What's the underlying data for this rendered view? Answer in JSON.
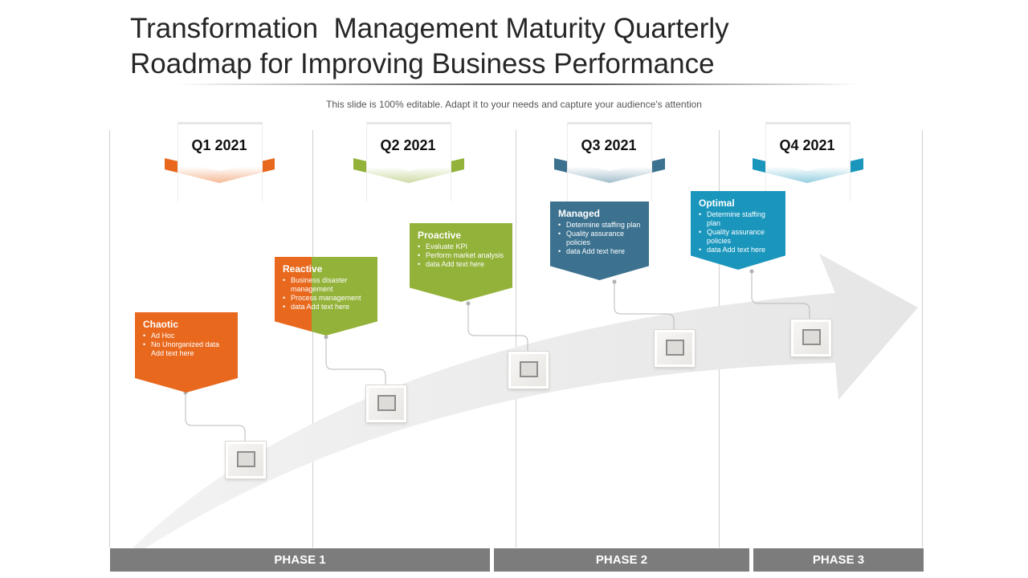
{
  "title": "Transformation  Management Maturity Quarterly\nRoadmap for Improving Business Performance",
  "subtitle": "This slide is 100% editable. Adapt it to your needs and capture your audience's attention",
  "quarters": [
    {
      "label": "Q1 2021",
      "color": "#e8691e"
    },
    {
      "label": "Q2 2021",
      "color": "#93b23a"
    },
    {
      "label": "Q3 2021",
      "color": "#3c7290"
    },
    {
      "label": "Q4 2021",
      "color": "#1a96bd"
    }
  ],
  "stages": [
    {
      "title": "Chaotic",
      "items": [
        "Ad Hoc",
        "No Unorganized  data Add text here"
      ],
      "color": "#e8691e"
    },
    {
      "title": "Reactive",
      "items": [
        "Business disaster management",
        "Process management",
        "data Add text here"
      ],
      "color": "#e8691e",
      "color2": "#93b23a"
    },
    {
      "title": "Proactive",
      "items": [
        "Evaluate KPI",
        "Perform market analysis",
        "data Add text here"
      ],
      "color": "#93b23a"
    },
    {
      "title": "Managed",
      "items": [
        "Determine staffing plan",
        "Quality assurance policies",
        "data Add text here"
      ],
      "color": "#3c7290"
    },
    {
      "title": "Optimal",
      "items": [
        "Determine staffing plan",
        "Quality assurance policies",
        "data Add text here"
      ],
      "color": "#1a96bd"
    }
  ],
  "phases": [
    "PHASE 1",
    "PHASE 2",
    "PHASE 3"
  ]
}
